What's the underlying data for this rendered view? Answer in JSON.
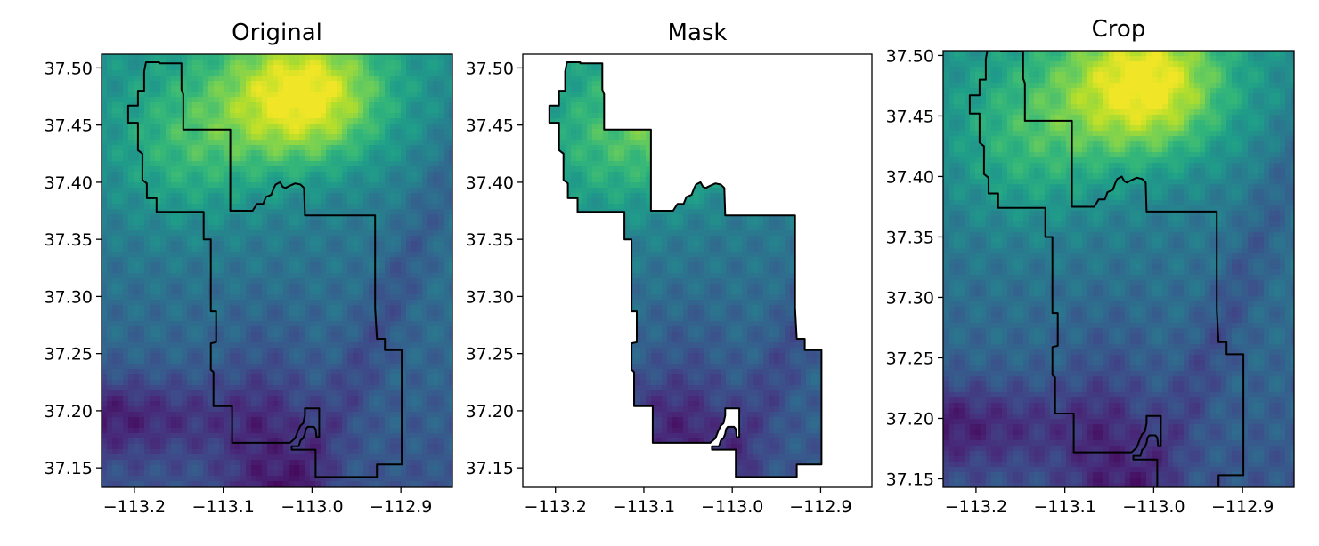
{
  "chart_data": [
    {
      "type": "heatmap",
      "title": "Original",
      "xlabel": "",
      "ylabel": "",
      "xlim": [
        -113.237,
        -112.842
      ],
      "ylim": [
        37.133,
        37.512
      ],
      "x_ticks": [
        {
          "value": -113.2,
          "label": "−113.2"
        },
        {
          "value": -113.1,
          "label": "−113.1"
        },
        {
          "value": -113.0,
          "label": "−113.0"
        },
        {
          "value": -112.9,
          "label": "−112.9"
        }
      ],
      "y_ticks": [
        {
          "value": 37.15,
          "label": "37.15"
        },
        {
          "value": 37.2,
          "label": "37.20"
        },
        {
          "value": 37.25,
          "label": "37.25"
        },
        {
          "value": 37.3,
          "label": "37.30"
        },
        {
          "value": 37.35,
          "label": "37.35"
        },
        {
          "value": 37.4,
          "label": "37.40"
        },
        {
          "value": 37.45,
          "label": "37.45"
        },
        {
          "value": 37.5,
          "label": "37.50"
        }
      ],
      "colormap": "viridis",
      "raster_extent": "full",
      "boundary_outline": true
    },
    {
      "type": "heatmap",
      "title": "Mask",
      "xlabel": "",
      "ylabel": "",
      "xlim": [
        -113.237,
        -112.842
      ],
      "ylim": [
        37.133,
        37.512
      ],
      "x_ticks": [
        {
          "value": -113.2,
          "label": "−113.2"
        },
        {
          "value": -113.1,
          "label": "−113.1"
        },
        {
          "value": -113.0,
          "label": "−113.0"
        },
        {
          "value": -112.9,
          "label": "−112.9"
        }
      ],
      "y_ticks": [
        {
          "value": 37.15,
          "label": "37.15"
        },
        {
          "value": 37.2,
          "label": "37.20"
        },
        {
          "value": 37.25,
          "label": "37.25"
        },
        {
          "value": 37.3,
          "label": "37.30"
        },
        {
          "value": 37.35,
          "label": "37.35"
        },
        {
          "value": 37.4,
          "label": "37.40"
        },
        {
          "value": 37.45,
          "label": "37.45"
        },
        {
          "value": 37.5,
          "label": "37.50"
        }
      ],
      "colormap": "viridis",
      "raster_extent": "masked to boundary",
      "boundary_outline": true
    },
    {
      "type": "heatmap",
      "title": "Crop",
      "xlabel": "",
      "ylabel": "",
      "xlim": [
        -113.237,
        -112.842
      ],
      "ylim": [
        37.143,
        37.504
      ],
      "x_ticks": [
        {
          "value": -113.2,
          "label": "−113.2"
        },
        {
          "value": -113.1,
          "label": "−113.1"
        },
        {
          "value": -113.0,
          "label": "−113.0"
        },
        {
          "value": -112.9,
          "label": "−112.9"
        }
      ],
      "y_ticks": [
        {
          "value": 37.15,
          "label": "37.15"
        },
        {
          "value": 37.2,
          "label": "37.20"
        },
        {
          "value": 37.25,
          "label": "37.25"
        },
        {
          "value": 37.3,
          "label": "37.30"
        },
        {
          "value": 37.35,
          "label": "37.35"
        },
        {
          "value": 37.4,
          "label": "37.40"
        },
        {
          "value": 37.45,
          "label": "37.45"
        },
        {
          "value": 37.5,
          "label": "37.50"
        }
      ],
      "colormap": "viridis",
      "raster_extent": "cropped to boundary bounds",
      "boundary_outline": true
    }
  ],
  "boundary": [
    [
      -113.187,
      37.505
    ],
    [
      -113.172,
      37.505
    ],
    [
      -113.172,
      37.504
    ],
    [
      -113.147,
      37.504
    ],
    [
      -113.147,
      37.481
    ],
    [
      -113.145,
      37.477
    ],
    [
      -113.145,
      37.446
    ],
    [
      -113.092,
      37.446
    ],
    [
      -113.092,
      37.375
    ],
    [
      -113.067,
      37.375
    ],
    [
      -113.062,
      37.381
    ],
    [
      -113.055,
      37.381
    ],
    [
      -113.052,
      37.387
    ],
    [
      -113.046,
      37.389
    ],
    [
      -113.043,
      37.395
    ],
    [
      -113.041,
      37.398
    ],
    [
      -113.036,
      37.4
    ],
    [
      -113.033,
      37.396
    ],
    [
      -113.03,
      37.395
    ],
    [
      -113.025,
      37.397
    ],
    [
      -113.019,
      37.399
    ],
    [
      -113.013,
      37.398
    ],
    [
      -113.009,
      37.395
    ],
    [
      -113.008,
      37.371
    ],
    [
      -112.929,
      37.371
    ],
    [
      -112.929,
      37.29
    ],
    [
      -112.927,
      37.263
    ],
    [
      -112.918,
      37.263
    ],
    [
      -112.918,
      37.253
    ],
    [
      -112.899,
      37.253
    ],
    [
      -112.899,
      37.153
    ],
    [
      -112.927,
      37.153
    ],
    [
      -112.927,
      37.142
    ],
    [
      -112.996,
      37.142
    ],
    [
      -112.996,
      37.166
    ],
    [
      -113.023,
      37.166
    ],
    [
      -113.023,
      37.169
    ],
    [
      -113.015,
      37.169
    ],
    [
      -113.013,
      37.174
    ],
    [
      -113.01,
      37.176
    ],
    [
      -113.008,
      37.18
    ],
    [
      -113.007,
      37.184
    ],
    [
      -113.005,
      37.186
    ],
    [
      -112.998,
      37.186
    ],
    [
      -112.996,
      37.184
    ],
    [
      -112.995,
      37.177
    ],
    [
      -112.992,
      37.177
    ],
    [
      -112.992,
      37.202
    ],
    [
      -113.008,
      37.202
    ],
    [
      -113.008,
      37.196
    ],
    [
      -113.01,
      37.189
    ],
    [
      -113.013,
      37.187
    ],
    [
      -113.016,
      37.182
    ],
    [
      -113.019,
      37.176
    ],
    [
      -113.025,
      37.172
    ],
    [
      -113.09,
      37.172
    ],
    [
      -113.09,
      37.204
    ],
    [
      -113.111,
      37.204
    ],
    [
      -113.111,
      37.234
    ],
    [
      -113.114,
      37.236
    ],
    [
      -113.114,
      37.259
    ],
    [
      -113.108,
      37.26
    ],
    [
      -113.108,
      37.287
    ],
    [
      -113.114,
      37.287
    ],
    [
      -113.114,
      37.35
    ],
    [
      -113.122,
      37.35
    ],
    [
      -113.122,
      37.374
    ],
    [
      -113.175,
      37.374
    ],
    [
      -113.175,
      37.386
    ],
    [
      -113.186,
      37.386
    ],
    [
      -113.186,
      37.399
    ],
    [
      -113.191,
      37.402
    ],
    [
      -113.191,
      37.425
    ],
    [
      -113.196,
      37.428
    ],
    [
      -113.196,
      37.452
    ],
    [
      -113.207,
      37.452
    ],
    [
      -113.207,
      37.467
    ],
    [
      -113.196,
      37.467
    ],
    [
      -113.196,
      37.48
    ],
    [
      -113.189,
      37.48
    ],
    [
      -113.189,
      37.497
    ],
    [
      -113.187,
      37.505
    ]
  ]
}
